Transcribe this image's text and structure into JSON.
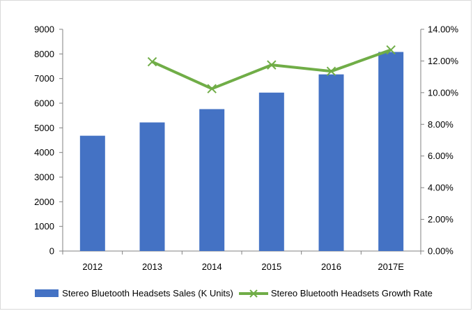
{
  "chart_data": {
    "type": "bar",
    "categories": [
      "2012",
      "2013",
      "2014",
      "2015",
      "2016",
      "2017E"
    ],
    "series": [
      {
        "name": "Stereo Bluetooth Headsets Sales (K Units)",
        "type": "bar",
        "axis": "left",
        "color": "#4472C4",
        "values": [
          4680,
          5220,
          5760,
          6430,
          7170,
          8080
        ]
      },
      {
        "name": "Stereo Bluetooth Headsets Growth Rate",
        "type": "line",
        "axis": "right",
        "color": "#70AD47",
        "values": [
          null,
          0.1195,
          0.1025,
          0.1175,
          0.1135,
          0.127
        ]
      }
    ],
    "y_left": {
      "min": 0,
      "max": 9000,
      "step": 1000,
      "ticks": [
        "0",
        "1000",
        "2000",
        "3000",
        "4000",
        "5000",
        "6000",
        "7000",
        "8000",
        "9000"
      ]
    },
    "y_right": {
      "min": 0,
      "max": 0.14,
      "step": 0.02,
      "ticks": [
        "0.00%",
        "2.00%",
        "4.00%",
        "6.00%",
        "8.00%",
        "10.00%",
        "12.00%",
        "14.00%"
      ]
    },
    "grid": false,
    "legend_position": "bottom",
    "title": "",
    "xlabel": "",
    "ylabel": ""
  }
}
